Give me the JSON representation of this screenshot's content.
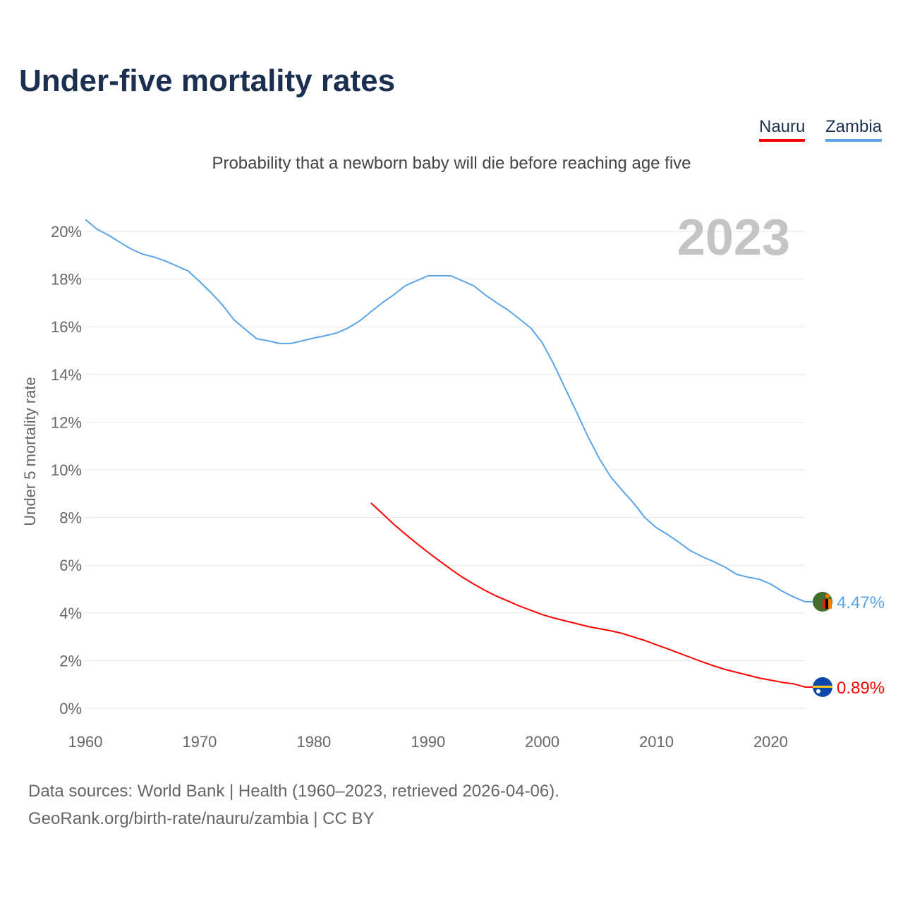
{
  "title": "Under-five mortality rates",
  "subtitle": "Probability that a newborn baby will die before reaching age five",
  "year_badge": "2023",
  "footer": {
    "line1": "Data sources: World Bank | Health (1960–2023, retrieved 2026-04-06).",
    "line2": "GeoRank.org/birth-rate/nauru/zambia | CC BY"
  },
  "chart_data": {
    "type": "line",
    "title": "Under-five mortality rates",
    "ylabel": "Under 5 mortality rate",
    "xlabel": "",
    "xlim": [
      1960,
      2023
    ],
    "ylim": [
      0,
      20
    ],
    "x_ticks": [
      "1960",
      "1970",
      "1980",
      "1990",
      "2000",
      "2010",
      "2020"
    ],
    "y_ticks": [
      "0%",
      "2%",
      "4%",
      "6%",
      "8%",
      "10%",
      "12%",
      "14%",
      "16%",
      "18%",
      "20%"
    ],
    "grid": true,
    "legend_position": "top-right",
    "series": [
      {
        "name": "Nauru",
        "color": "#ff0000",
        "end_label": "0.89%",
        "start_year": 1985,
        "values": [
          8.61,
          8.17,
          7.72,
          7.31,
          6.92,
          6.54,
          6.18,
          5.83,
          5.5,
          5.21,
          4.94,
          4.7,
          4.5,
          4.29,
          4.11,
          3.93,
          3.79,
          3.67,
          3.55,
          3.43,
          3.34,
          3.25,
          3.14,
          2.99,
          2.84,
          2.66,
          2.49,
          2.31,
          2.13,
          1.95,
          1.78,
          1.63,
          1.51,
          1.39,
          1.27,
          1.18,
          1.09,
          1.03,
          0.89
        ]
      },
      {
        "name": "Zambia",
        "color": "#5aa5e8",
        "end_label": "4.47%",
        "start_year": 1960,
        "values": [
          20.5,
          20.1,
          19.85,
          19.55,
          19.26,
          19.05,
          18.93,
          18.76,
          18.55,
          18.34,
          17.9,
          17.43,
          16.92,
          16.3,
          15.89,
          15.5,
          15.41,
          15.3,
          15.3,
          15.41,
          15.53,
          15.62,
          15.74,
          15.95,
          16.24,
          16.63,
          17.01,
          17.34,
          17.72,
          17.93,
          18.14,
          18.14,
          18.14,
          17.93,
          17.72,
          17.34,
          17.01,
          16.7,
          16.33,
          15.95,
          15.33,
          14.44,
          13.43,
          12.43,
          11.39,
          10.47,
          9.7,
          9.14,
          8.61,
          7.99,
          7.57,
          7.28,
          6.95,
          6.6,
          6.36,
          6.15,
          5.92,
          5.62,
          5.5,
          5.41,
          5.21,
          4.91,
          4.67,
          4.47
        ]
      }
    ]
  }
}
